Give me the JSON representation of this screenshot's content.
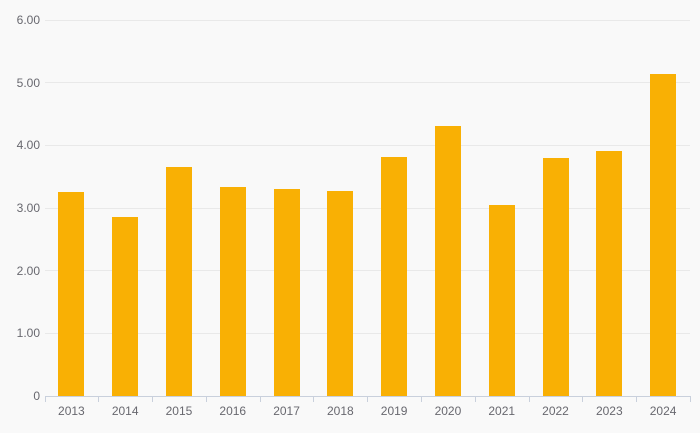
{
  "chart": {
    "background_color": "#f9f9f9",
    "bar_color": "#f9b004",
    "gridline_color": "#e9e9e9",
    "axis_line_color": "#c9d0dc",
    "tick_color": "#c9d0dc",
    "label_color": "#68686f"
  },
  "chart_data": {
    "type": "bar",
    "title": "",
    "xlabel": "",
    "ylabel": "",
    "categories": [
      "2013",
      "2014",
      "2015",
      "2016",
      "2017",
      "2018",
      "2019",
      "2020",
      "2021",
      "2022",
      "2023",
      "2024"
    ],
    "values": [
      3.25,
      2.86,
      3.65,
      3.34,
      3.3,
      3.27,
      3.81,
      4.31,
      3.05,
      3.79,
      3.91,
      5.14
    ],
    "ylim": [
      0,
      6
    ],
    "yticks": [
      {
        "value": 6,
        "label": "6.00"
      },
      {
        "value": 5,
        "label": "5.00"
      },
      {
        "value": 4,
        "label": "4.00"
      },
      {
        "value": 3,
        "label": "3.00"
      },
      {
        "value": 2,
        "label": "2.00"
      },
      {
        "value": 1,
        "label": "1.00"
      },
      {
        "value": 0,
        "label": "0"
      }
    ],
    "grid": true,
    "legend": false
  }
}
